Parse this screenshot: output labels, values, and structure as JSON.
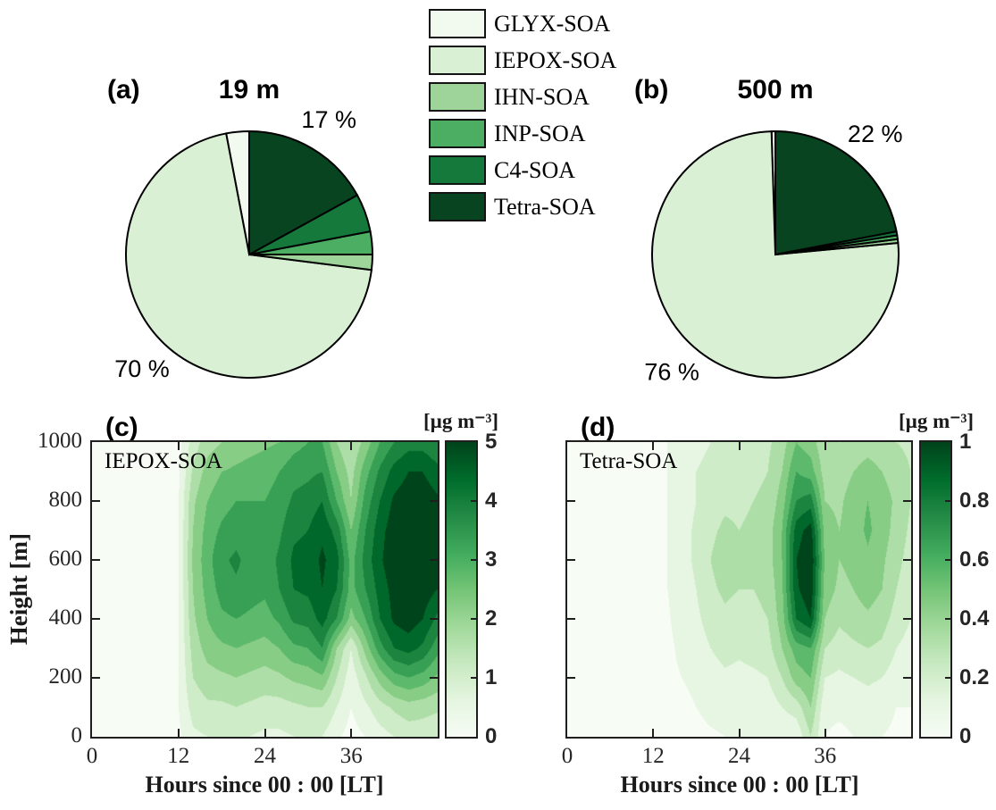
{
  "colormap": [
    "#f7fcf5",
    "#e5f5e0",
    "#c7e9c0",
    "#a1d99b",
    "#74c476",
    "#41ab5d",
    "#238b45",
    "#006d2c",
    "#00441b"
  ],
  "legend": {
    "items": [
      {
        "label": "GLYX-SOA",
        "color": "#f2f9ef"
      },
      {
        "label": "IEPOX-SOA",
        "color": "#d9f0d4"
      },
      {
        "label": "IHN-SOA",
        "color": "#9ed49a"
      },
      {
        "label": "INP-SOA",
        "color": "#4bae62"
      },
      {
        "label": "C4-SOA",
        "color": "#15793c"
      },
      {
        "label": "Tetra-SOA",
        "color": "#07441f"
      }
    ]
  },
  "chart_data": [
    {
      "type": "pie",
      "panel": "(a)",
      "title": "19 m",
      "start": "north",
      "direction": "counterclockwise",
      "slices": [
        {
          "name": "GLYX-SOA",
          "value": 3,
          "color": "#f2f9ef",
          "label": ""
        },
        {
          "name": "IEPOX-SOA",
          "value": 70,
          "color": "#d9f0d4",
          "label": "70 %"
        },
        {
          "name": "IHN-SOA",
          "value": 2,
          "color": "#9ed49a",
          "label": ""
        },
        {
          "name": "INP-SOA",
          "value": 3,
          "color": "#4bae62",
          "label": ""
        },
        {
          "name": "C4-SOA",
          "value": 5,
          "color": "#15793c",
          "label": ""
        },
        {
          "name": "Tetra-SOA",
          "value": 17,
          "color": "#07441f",
          "label": "17 %"
        }
      ]
    },
    {
      "type": "pie",
      "panel": "(b)",
      "title": "500 m",
      "start": "north",
      "direction": "counterclockwise",
      "slices": [
        {
          "name": "GLYX-SOA",
          "value": 0.5,
          "color": "#f2f9ef",
          "label": ""
        },
        {
          "name": "IEPOX-SOA",
          "value": 76,
          "color": "#d9f0d4",
          "label": "76 %"
        },
        {
          "name": "IHN-SOA",
          "value": 0.5,
          "color": "#9ed49a",
          "label": ""
        },
        {
          "name": "INP-SOA",
          "value": 0.5,
          "color": "#4bae62",
          "label": ""
        },
        {
          "name": "C4-SOA",
          "value": 0.5,
          "color": "#15793c",
          "label": ""
        },
        {
          "name": "Tetra-SOA",
          "value": 22,
          "color": "#07441f",
          "label": "22 %"
        }
      ]
    },
    {
      "type": "heatmap",
      "panel": "(c)",
      "series_label": "IEPOX-SOA",
      "xlabel": "Hours since 00 : 00 [LT]",
      "ylabel": "Height [m]",
      "colorbar_label": "[µg m⁻³]",
      "x_range": [
        0,
        48
      ],
      "y_range": [
        0,
        1000
      ],
      "z_range": [
        0,
        5
      ],
      "levels": 10,
      "x_ticks": [
        0,
        12,
        24,
        36
      ],
      "y_ticks": [
        0,
        200,
        400,
        600,
        800,
        1000
      ],
      "show_y_tick_labels": true,
      "colorbar_ticks": [
        0,
        1,
        2,
        3,
        4,
        5
      ],
      "x": [
        0,
        2,
        4,
        6,
        8,
        10,
        12,
        14,
        16,
        18,
        20,
        22,
        24,
        26,
        28,
        30,
        32,
        34,
        36,
        38,
        40,
        42,
        44,
        46,
        48
      ],
      "heights": [
        1000,
        900,
        800,
        700,
        600,
        500,
        400,
        300,
        200,
        100,
        0
      ],
      "values": [
        [
          0.1,
          0.1,
          0.1,
          0.1,
          0.1,
          0.1,
          0.3,
          1.2,
          1.8,
          2.0,
          2.2,
          2.3,
          2.4,
          2.5,
          2.8,
          3.0,
          3.0,
          2.0,
          1.5,
          2.2,
          3.0,
          3.5,
          3.8,
          3.8,
          3.5
        ],
        [
          0.1,
          0.1,
          0.1,
          0.1,
          0.1,
          0.1,
          0.4,
          1.6,
          2.2,
          2.5,
          2.6,
          2.7,
          2.8,
          3.0,
          3.3,
          3.4,
          3.5,
          2.5,
          1.8,
          2.8,
          3.6,
          4.2,
          4.5,
          4.5,
          4.2
        ],
        [
          0.1,
          0.1,
          0.1,
          0.1,
          0.1,
          0.12,
          0.5,
          1.9,
          2.5,
          2.8,
          3.0,
          3.0,
          3.0,
          3.2,
          3.6,
          3.7,
          4.0,
          3.0,
          2.0,
          3.2,
          4.0,
          4.6,
          4.8,
          4.8,
          4.6
        ],
        [
          0.1,
          0.1,
          0.1,
          0.1,
          0.12,
          0.12,
          0.5,
          2.0,
          2.7,
          3.1,
          3.3,
          3.2,
          3.1,
          3.4,
          3.9,
          4.0,
          4.4,
          3.8,
          2.5,
          3.5,
          4.3,
          4.8,
          5.0,
          4.9,
          4.7
        ],
        [
          0.1,
          0.1,
          0.1,
          0.1,
          0.12,
          0.12,
          0.5,
          2.1,
          2.8,
          3.4,
          3.6,
          3.3,
          3.2,
          3.6,
          4.1,
          4.2,
          4.6,
          4.2,
          2.8,
          3.7,
          4.4,
          4.9,
          5.0,
          5.0,
          4.7
        ],
        [
          0.1,
          0.1,
          0.1,
          0.1,
          0.1,
          0.12,
          0.5,
          2.0,
          2.7,
          3.2,
          3.4,
          3.2,
          3.1,
          3.5,
          4.0,
          4.1,
          4.5,
          4.0,
          2.8,
          3.5,
          4.2,
          4.7,
          4.9,
          4.8,
          4.5
        ],
        [
          0.1,
          0.1,
          0.1,
          0.1,
          0.1,
          0.1,
          0.5,
          1.9,
          2.5,
          2.9,
          3.0,
          2.9,
          2.8,
          3.1,
          3.6,
          3.7,
          4.2,
          3.5,
          2.3,
          3.0,
          4.0,
          4.6,
          4.8,
          4.5,
          3.9
        ],
        [
          0.08,
          0.08,
          0.08,
          0.08,
          0.1,
          0.1,
          0.5,
          1.7,
          2.2,
          2.4,
          2.5,
          2.4,
          2.3,
          2.5,
          2.9,
          3.0,
          3.5,
          2.0,
          1.0,
          2.2,
          3.3,
          4.0,
          4.2,
          3.9,
          3.2
        ],
        [
          0.08,
          0.08,
          0.08,
          0.08,
          0.08,
          0.1,
          0.5,
          1.5,
          1.8,
          1.9,
          2.0,
          1.9,
          1.8,
          1.9,
          2.1,
          2.2,
          2.4,
          1.5,
          0.7,
          1.4,
          2.2,
          2.8,
          3.0,
          2.8,
          2.4
        ],
        [
          0.05,
          0.05,
          0.05,
          0.05,
          0.08,
          0.08,
          0.5,
          1.2,
          1.4,
          1.4,
          1.5,
          1.4,
          1.3,
          1.3,
          1.4,
          1.5,
          1.5,
          1.0,
          0.5,
          0.9,
          1.3,
          1.6,
          1.8,
          1.7,
          1.6
        ],
        [
          0.05,
          0.05,
          0.05,
          0.05,
          0.05,
          0.05,
          0.4,
          0.9,
          1.0,
          1.0,
          1.1,
          1.0,
          0.9,
          0.9,
          1.0,
          1.0,
          1.0,
          0.6,
          0.3,
          0.5,
          0.8,
          1.0,
          1.2,
          1.2,
          1.1
        ]
      ]
    },
    {
      "type": "heatmap",
      "panel": "(d)",
      "series_label": "Tetra-SOA",
      "xlabel": "Hours since 00 : 00 [LT]",
      "ylabel": "",
      "colorbar_label": "[µg m⁻³]",
      "x_range": [
        0,
        48
      ],
      "y_range": [
        0,
        1000
      ],
      "z_range": [
        0,
        1
      ],
      "levels": 10,
      "x_ticks": [
        0,
        12,
        24,
        36
      ],
      "y_ticks": [
        0,
        200,
        400,
        600,
        800,
        1000
      ],
      "show_y_tick_labels": false,
      "colorbar_ticks": [
        0,
        0.2,
        0.4,
        0.6,
        0.8,
        1
      ],
      "x": [
        0,
        2,
        4,
        6,
        8,
        10,
        12,
        14,
        16,
        18,
        20,
        22,
        24,
        26,
        28,
        30,
        32,
        34,
        36,
        38,
        40,
        42,
        44,
        46,
        48
      ],
      "heights": [
        1000,
        900,
        800,
        700,
        600,
        500,
        400,
        300,
        200,
        100,
        0
      ],
      "values": [
        [
          0.02,
          0.02,
          0.02,
          0.02,
          0.02,
          0.03,
          0.05,
          0.1,
          0.15,
          0.18,
          0.2,
          0.22,
          0.22,
          0.25,
          0.28,
          0.35,
          0.5,
          0.45,
          0.32,
          0.3,
          0.32,
          0.35,
          0.32,
          0.3,
          0.28
        ],
        [
          0.02,
          0.02,
          0.02,
          0.02,
          0.02,
          0.03,
          0.05,
          0.1,
          0.15,
          0.2,
          0.22,
          0.25,
          0.25,
          0.28,
          0.3,
          0.4,
          0.6,
          0.55,
          0.35,
          0.35,
          0.4,
          0.45,
          0.4,
          0.35,
          0.3
        ],
        [
          0.02,
          0.02,
          0.02,
          0.02,
          0.02,
          0.03,
          0.05,
          0.1,
          0.15,
          0.2,
          0.25,
          0.28,
          0.28,
          0.3,
          0.32,
          0.45,
          0.7,
          0.75,
          0.4,
          0.38,
          0.45,
          0.5,
          0.45,
          0.38,
          0.3
        ],
        [
          0.02,
          0.02,
          0.02,
          0.02,
          0.02,
          0.03,
          0.05,
          0.1,
          0.16,
          0.22,
          0.28,
          0.32,
          0.3,
          0.32,
          0.35,
          0.5,
          0.85,
          0.95,
          0.45,
          0.4,
          0.45,
          0.52,
          0.45,
          0.36,
          0.28
        ],
        [
          0.02,
          0.02,
          0.02,
          0.02,
          0.02,
          0.03,
          0.05,
          0.1,
          0.16,
          0.22,
          0.3,
          0.35,
          0.32,
          0.32,
          0.35,
          0.5,
          0.9,
          1.0,
          0.48,
          0.4,
          0.42,
          0.48,
          0.42,
          0.33,
          0.26
        ],
        [
          0.02,
          0.02,
          0.02,
          0.02,
          0.02,
          0.03,
          0.05,
          0.1,
          0.15,
          0.2,
          0.28,
          0.32,
          0.3,
          0.3,
          0.32,
          0.48,
          0.88,
          0.98,
          0.45,
          0.38,
          0.4,
          0.45,
          0.4,
          0.3,
          0.24
        ],
        [
          0.02,
          0.02,
          0.02,
          0.02,
          0.02,
          0.03,
          0.05,
          0.09,
          0.14,
          0.18,
          0.24,
          0.28,
          0.26,
          0.28,
          0.3,
          0.45,
          0.8,
          0.9,
          0.4,
          0.32,
          0.35,
          0.38,
          0.34,
          0.26,
          0.2
        ],
        [
          0.02,
          0.02,
          0.02,
          0.02,
          0.02,
          0.02,
          0.05,
          0.08,
          0.12,
          0.15,
          0.2,
          0.24,
          0.22,
          0.24,
          0.26,
          0.4,
          0.55,
          0.6,
          0.3,
          0.25,
          0.28,
          0.3,
          0.28,
          0.2,
          0.16
        ],
        [
          0.02,
          0.02,
          0.02,
          0.02,
          0.02,
          0.02,
          0.05,
          0.08,
          0.1,
          0.12,
          0.15,
          0.18,
          0.17,
          0.18,
          0.2,
          0.3,
          0.45,
          0.5,
          0.2,
          0.18,
          0.2,
          0.22,
          0.2,
          0.15,
          0.12
        ],
        [
          0.02,
          0.02,
          0.02,
          0.02,
          0.02,
          0.02,
          0.04,
          0.06,
          0.08,
          0.1,
          0.12,
          0.13,
          0.12,
          0.13,
          0.14,
          0.2,
          0.25,
          0.4,
          0.12,
          0.12,
          0.13,
          0.15,
          0.14,
          0.1,
          0.1
        ],
        [
          0.02,
          0.02,
          0.02,
          0.02,
          0.02,
          0.02,
          0.04,
          0.05,
          0.06,
          0.08,
          0.09,
          0.1,
          0.1,
          0.1,
          0.1,
          0.12,
          0.12,
          0.3,
          0.1,
          0.08,
          0.1,
          0.1,
          0.1,
          0.08,
          0.08
        ]
      ]
    }
  ]
}
